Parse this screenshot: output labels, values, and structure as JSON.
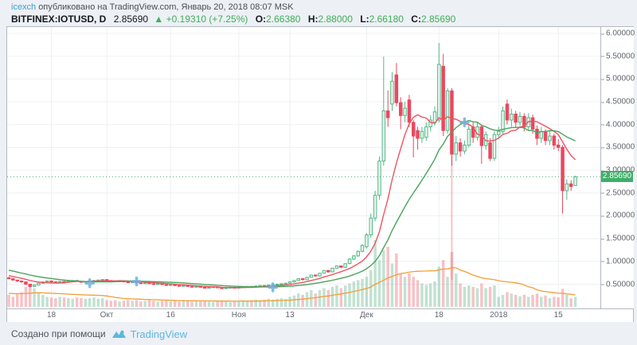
{
  "header": {
    "author": "icexch",
    "attribution": "опубликовано на TradingView.com, Январь 20, 2018 08:07 MSK",
    "symbol": "BITFINEX:IOTUSD, D",
    "last_price": "2.85690",
    "change_arrow": "▲",
    "change": "+0.19310 (+7.25%)",
    "o_label": "O:",
    "o": "2.66380",
    "h_label": "H:",
    "h": "2.88000",
    "l_label": "L:",
    "l": "2.66180",
    "c_label": "C:",
    "c": "2.85690"
  },
  "footer": {
    "made_with": "Создано при помощи",
    "brand": "TradingView"
  },
  "price_axis": {
    "last_label": "2.85690",
    "ticks": [
      {
        "text": "6.00000",
        "value": 6.0
      },
      {
        "text": "5.50000",
        "value": 5.5
      },
      {
        "text": "5.00000",
        "value": 5.0
      },
      {
        "text": "4.50000",
        "value": 4.5
      },
      {
        "text": "4.00000",
        "value": 4.0
      },
      {
        "text": "3.50000",
        "value": 3.5
      },
      {
        "text": "3.00000",
        "value": 3.0
      },
      {
        "text": "2.50000",
        "value": 2.5
      },
      {
        "text": "2.00000",
        "value": 2.0
      },
      {
        "text": "1.50000",
        "value": 1.5
      },
      {
        "text": "1.00000",
        "value": 1.0
      },
      {
        "text": "0.50000",
        "value": 0.5
      }
    ]
  },
  "time_axis": {
    "labels": [
      {
        "text": "18",
        "i": 10
      },
      {
        "text": "Окт",
        "i": 23
      },
      {
        "text": "16",
        "i": 38
      },
      {
        "text": "Ноя",
        "i": 54
      },
      {
        "text": "13",
        "i": 66
      },
      {
        "text": "Дек",
        "i": 84
      },
      {
        "text": "18",
        "i": 101
      },
      {
        "text": "2018",
        "i": 115
      },
      {
        "text": "15",
        "i": 129
      }
    ]
  },
  "colors": {
    "bg": "#edf0f4",
    "panel": "#ffffff",
    "border": "#b4b9c1",
    "grid": "#edf0f3",
    "up": "#53b987",
    "up_fill": "#eaf6ef",
    "down": "#e9495f",
    "down_fill": "#e9495f",
    "vol_up": "rgba(103,183,140,0.40)",
    "vol_down": "rgba(236,94,106,0.38)",
    "ma_fast": "#ef5360",
    "ma_slow": "#4aa35a",
    "vol_ma": "#f19f36",
    "last_line": "#3fae6a",
    "badge": "#3fae6a",
    "link_blue": "#3aa0d8",
    "header_green": "#3fae5a",
    "marker_blue": "#6fb1dd",
    "vline_red": "rgba(242,84,91,0.35)",
    "axis_text": "#61666e"
  },
  "chart_data": {
    "type": "candlestick",
    "title": "BITFINEX:IOTUSD, D",
    "exchange": "BITFINEX",
    "symbol": "IOTUSD",
    "interval": "D",
    "ylim": [
      0,
      6.14
    ],
    "grid": true,
    "legend_position": "none",
    "x_labels": [
      "18",
      "Окт",
      "16",
      "Ноя",
      "13",
      "Дек",
      "18",
      "2018",
      "15"
    ],
    "last_price": 2.8569,
    "candles_format": [
      "open",
      "high",
      "low",
      "close",
      "volume_rel"
    ],
    "candles": [
      [
        0.64,
        0.66,
        0.61,
        0.62,
        0.18
      ],
      [
        0.62,
        0.63,
        0.58,
        0.59,
        0.15
      ],
      [
        0.59,
        0.6,
        0.55,
        0.57,
        0.2
      ],
      [
        0.57,
        0.58,
        0.53,
        0.55,
        0.22
      ],
      [
        0.55,
        0.56,
        0.48,
        0.5,
        0.3
      ],
      [
        0.5,
        0.51,
        0.43,
        0.45,
        0.32
      ],
      [
        0.45,
        0.5,
        0.44,
        0.48,
        0.28
      ],
      [
        0.48,
        0.53,
        0.47,
        0.52,
        0.22
      ],
      [
        0.52,
        0.56,
        0.51,
        0.55,
        0.18
      ],
      [
        0.55,
        0.58,
        0.54,
        0.57,
        0.15
      ],
      [
        0.57,
        0.58,
        0.53,
        0.55,
        0.14
      ],
      [
        0.55,
        0.56,
        0.52,
        0.54,
        0.13
      ],
      [
        0.54,
        0.57,
        0.53,
        0.56,
        0.15
      ],
      [
        0.56,
        0.57,
        0.53,
        0.55,
        0.14
      ],
      [
        0.55,
        0.58,
        0.54,
        0.57,
        0.13
      ],
      [
        0.57,
        0.59,
        0.55,
        0.58,
        0.12
      ],
      [
        0.58,
        0.59,
        0.55,
        0.56,
        0.14
      ],
      [
        0.56,
        0.57,
        0.53,
        0.55,
        0.13
      ],
      [
        0.55,
        0.57,
        0.54,
        0.56,
        0.12
      ],
      [
        0.56,
        0.58,
        0.55,
        0.57,
        0.13
      ],
      [
        0.57,
        0.59,
        0.56,
        0.58,
        0.14
      ],
      [
        0.58,
        0.6,
        0.57,
        0.59,
        0.12
      ],
      [
        0.59,
        0.61,
        0.57,
        0.6,
        0.13
      ],
      [
        0.6,
        0.61,
        0.57,
        0.58,
        0.1
      ],
      [
        0.58,
        0.59,
        0.56,
        0.57,
        0.09
      ],
      [
        0.57,
        0.58,
        0.55,
        0.56,
        0.1
      ],
      [
        0.56,
        0.58,
        0.55,
        0.57,
        0.08
      ],
      [
        0.57,
        0.58,
        0.54,
        0.55,
        0.09
      ],
      [
        0.55,
        0.56,
        0.53,
        0.54,
        0.1
      ],
      [
        0.54,
        0.56,
        0.53,
        0.55,
        0.09
      ],
      [
        0.55,
        0.56,
        0.52,
        0.53,
        0.1
      ],
      [
        0.53,
        0.54,
        0.51,
        0.52,
        0.08
      ],
      [
        0.52,
        0.54,
        0.51,
        0.53,
        0.09
      ],
      [
        0.53,
        0.54,
        0.5,
        0.51,
        0.1
      ],
      [
        0.51,
        0.52,
        0.49,
        0.5,
        0.09
      ],
      [
        0.5,
        0.52,
        0.49,
        0.51,
        0.08
      ],
      [
        0.51,
        0.52,
        0.48,
        0.49,
        0.09
      ],
      [
        0.49,
        0.5,
        0.47,
        0.48,
        0.1
      ],
      [
        0.48,
        0.5,
        0.47,
        0.49,
        0.08
      ],
      [
        0.49,
        0.5,
        0.46,
        0.47,
        0.09
      ],
      [
        0.47,
        0.48,
        0.45,
        0.46,
        0.08
      ],
      [
        0.46,
        0.48,
        0.45,
        0.47,
        0.09
      ],
      [
        0.47,
        0.48,
        0.44,
        0.45,
        0.1
      ],
      [
        0.45,
        0.46,
        0.43,
        0.44,
        0.08
      ],
      [
        0.44,
        0.46,
        0.43,
        0.45,
        0.09
      ],
      [
        0.45,
        0.46,
        0.42,
        0.43,
        0.08
      ],
      [
        0.43,
        0.44,
        0.41,
        0.42,
        0.09
      ],
      [
        0.42,
        0.44,
        0.41,
        0.43,
        0.08
      ],
      [
        0.43,
        0.45,
        0.42,
        0.44,
        0.07
      ],
      [
        0.44,
        0.45,
        0.41,
        0.42,
        0.08
      ],
      [
        0.42,
        0.43,
        0.4,
        0.41,
        0.09
      ],
      [
        0.41,
        0.43,
        0.4,
        0.42,
        0.08
      ],
      [
        0.42,
        0.44,
        0.41,
        0.43,
        0.07
      ],
      [
        0.43,
        0.44,
        0.41,
        0.42,
        0.08
      ],
      [
        0.42,
        0.44,
        0.41,
        0.43,
        0.09
      ],
      [
        0.43,
        0.45,
        0.42,
        0.44,
        0.1
      ],
      [
        0.44,
        0.46,
        0.43,
        0.45,
        0.09
      ],
      [
        0.45,
        0.46,
        0.43,
        0.44,
        0.1
      ],
      [
        0.44,
        0.47,
        0.43,
        0.46,
        0.11
      ],
      [
        0.46,
        0.48,
        0.45,
        0.47,
        0.1
      ],
      [
        0.47,
        0.48,
        0.45,
        0.46,
        0.11
      ],
      [
        0.46,
        0.49,
        0.45,
        0.48,
        0.12
      ],
      [
        0.48,
        0.5,
        0.47,
        0.49,
        0.11
      ],
      [
        0.49,
        0.51,
        0.48,
        0.5,
        0.12
      ],
      [
        0.5,
        0.52,
        0.49,
        0.51,
        0.13
      ],
      [
        0.51,
        0.53,
        0.5,
        0.52,
        0.12
      ],
      [
        0.52,
        0.56,
        0.51,
        0.55,
        0.15
      ],
      [
        0.55,
        0.59,
        0.54,
        0.58,
        0.17
      ],
      [
        0.58,
        0.63,
        0.57,
        0.62,
        0.2
      ],
      [
        0.62,
        0.63,
        0.58,
        0.6,
        0.18
      ],
      [
        0.6,
        0.66,
        0.59,
        0.65,
        0.22
      ],
      [
        0.65,
        0.71,
        0.64,
        0.7,
        0.25
      ],
      [
        0.7,
        0.71,
        0.66,
        0.68,
        0.2
      ],
      [
        0.68,
        0.75,
        0.67,
        0.74,
        0.25
      ],
      [
        0.74,
        0.81,
        0.73,
        0.8,
        0.28
      ],
      [
        0.8,
        0.81,
        0.75,
        0.77,
        0.25
      ],
      [
        0.77,
        0.86,
        0.76,
        0.85,
        0.3
      ],
      [
        0.85,
        0.91,
        0.84,
        0.9,
        0.32
      ],
      [
        0.9,
        0.91,
        0.85,
        0.87,
        0.28
      ],
      [
        0.87,
        0.96,
        0.86,
        0.95,
        0.32
      ],
      [
        0.95,
        1.07,
        0.94,
        1.05,
        0.35
      ],
      [
        1.05,
        1.14,
        1.03,
        1.12,
        0.38
      ],
      [
        1.12,
        1.24,
        1.1,
        1.22,
        0.4
      ],
      [
        1.22,
        1.38,
        1.2,
        1.35,
        0.42
      ],
      [
        1.32,
        1.62,
        1.28,
        1.58,
        0.45
      ],
      [
        1.58,
        2.05,
        1.52,
        1.95,
        0.55
      ],
      [
        1.95,
        2.55,
        1.88,
        2.45,
        1.0
      ],
      [
        2.45,
        3.3,
        2.35,
        3.2,
        0.7
      ],
      [
        3.2,
        5.49,
        3.1,
        4.3,
        0.85
      ],
      [
        4.3,
        4.75,
        3.95,
        4.15,
        0.9
      ],
      [
        4.45,
        5.15,
        4.3,
        4.95,
        0.65
      ],
      [
        5.09,
        5.35,
        4.4,
        4.48,
        0.8
      ],
      [
        4.48,
        4.6,
        3.9,
        4.2,
        0.5
      ],
      [
        4.2,
        4.5,
        4.05,
        4.36,
        0.45
      ],
      [
        4.54,
        4.65,
        3.95,
        4.05,
        0.5
      ],
      [
        4.05,
        4.1,
        3.28,
        3.75,
        0.45
      ],
      [
        3.87,
        3.95,
        3.45,
        3.7,
        0.4
      ],
      [
        3.7,
        3.95,
        3.6,
        3.85,
        0.35
      ],
      [
        3.72,
        4.05,
        3.65,
        3.95,
        0.33
      ],
      [
        3.95,
        4.2,
        3.85,
        4.1,
        0.35
      ],
      [
        4.05,
        4.4,
        3.98,
        4.28,
        0.38
      ],
      [
        4.1,
        5.79,
        4.05,
        5.32,
        0.6
      ],
      [
        5.28,
        5.55,
        3.75,
        3.87,
        0.7
      ],
      [
        3.87,
        4.8,
        3.8,
        4.74,
        0.45
      ],
      [
        4.74,
        4.8,
        3.1,
        3.35,
        0.82
      ],
      [
        3.35,
        3.75,
        3.2,
        3.6,
        0.5
      ],
      [
        3.6,
        3.7,
        3.3,
        3.42,
        0.35
      ],
      [
        3.42,
        3.65,
        3.35,
        3.55,
        0.3
      ],
      [
        3.55,
        4.0,
        3.5,
        3.9,
        0.32
      ],
      [
        3.95,
        4.05,
        3.6,
        3.72,
        0.3
      ],
      [
        3.72,
        4.05,
        3.65,
        3.95,
        0.28
      ],
      [
        3.95,
        4.0,
        3.14,
        3.54,
        0.35
      ],
      [
        3.54,
        3.85,
        3.45,
        3.78,
        0.28
      ],
      [
        3.6,
        3.7,
        3.2,
        3.26,
        0.3
      ],
      [
        3.26,
        3.85,
        3.2,
        3.78,
        0.32
      ],
      [
        3.78,
        3.95,
        3.7,
        3.85,
        0.15
      ],
      [
        3.85,
        4.4,
        3.8,
        4.3,
        0.18
      ],
      [
        4.45,
        4.55,
        4.0,
        4.1,
        0.22
      ],
      [
        4.1,
        4.35,
        3.95,
        4.23,
        0.2
      ],
      [
        4.23,
        4.3,
        3.95,
        4.05,
        0.18
      ],
      [
        4.05,
        4.28,
        3.98,
        4.18,
        0.16
      ],
      [
        4.18,
        4.25,
        3.85,
        3.95,
        0.18
      ],
      [
        3.95,
        4.25,
        3.88,
        4.15,
        0.15
      ],
      [
        4.15,
        4.22,
        3.8,
        3.9,
        0.18
      ],
      [
        3.9,
        3.98,
        3.55,
        3.7,
        0.2
      ],
      [
        3.7,
        3.95,
        3.6,
        3.85,
        0.15
      ],
      [
        3.85,
        3.9,
        3.55,
        3.65,
        0.17
      ],
      [
        3.65,
        3.85,
        3.55,
        3.75,
        0.13
      ],
      [
        3.75,
        3.8,
        3.45,
        3.55,
        0.15
      ],
      [
        3.55,
        3.68,
        3.42,
        3.5,
        0.14
      ],
      [
        3.5,
        3.55,
        2.05,
        2.55,
        0.27
      ],
      [
        2.55,
        2.8,
        2.35,
        2.7,
        0.18
      ],
      [
        2.7,
        2.78,
        2.55,
        2.64,
        0.13
      ],
      [
        2.6638,
        2.88,
        2.6618,
        2.8569,
        0.15
      ]
    ],
    "overlays": [
      {
        "name": "ma-fast",
        "kind": "sma_close",
        "period": 9,
        "color_key": "ma_fast"
      },
      {
        "name": "ma-slow",
        "kind": "sma_close",
        "period": 21,
        "color_key": "ma_slow"
      },
      {
        "name": "volume-ma",
        "kind": "sma_volume",
        "period": 20,
        "color_key": "vol_ma"
      }
    ],
    "ma_lead_in_closes": [
      1.06,
      1.03,
      1.0,
      0.97,
      0.95,
      0.92,
      0.9,
      0.88,
      0.86,
      0.84,
      0.82,
      0.8,
      0.78,
      0.76,
      0.74,
      0.72,
      0.7,
      0.68,
      0.66,
      0.65,
      0.64
    ],
    "vol_lead_in": [
      0.25,
      0.22,
      0.24,
      0.2,
      0.22,
      0.25,
      0.2,
      0.18,
      0.22,
      0.2,
      0.19,
      0.22,
      0.18,
      0.2,
      0.22,
      0.19,
      0.18,
      0.2,
      0.18,
      0.17
    ],
    "markers": [
      {
        "i": 19,
        "price": 0.52
      },
      {
        "i": 30,
        "price": 0.56
      },
      {
        "i": 62,
        "price": 0.43
      },
      {
        "i": 107,
        "price": 4.05
      }
    ],
    "annotations": [
      {
        "kind": "vline",
        "i": 104,
        "from_price": 3.3,
        "to_price": 0.6
      }
    ]
  }
}
